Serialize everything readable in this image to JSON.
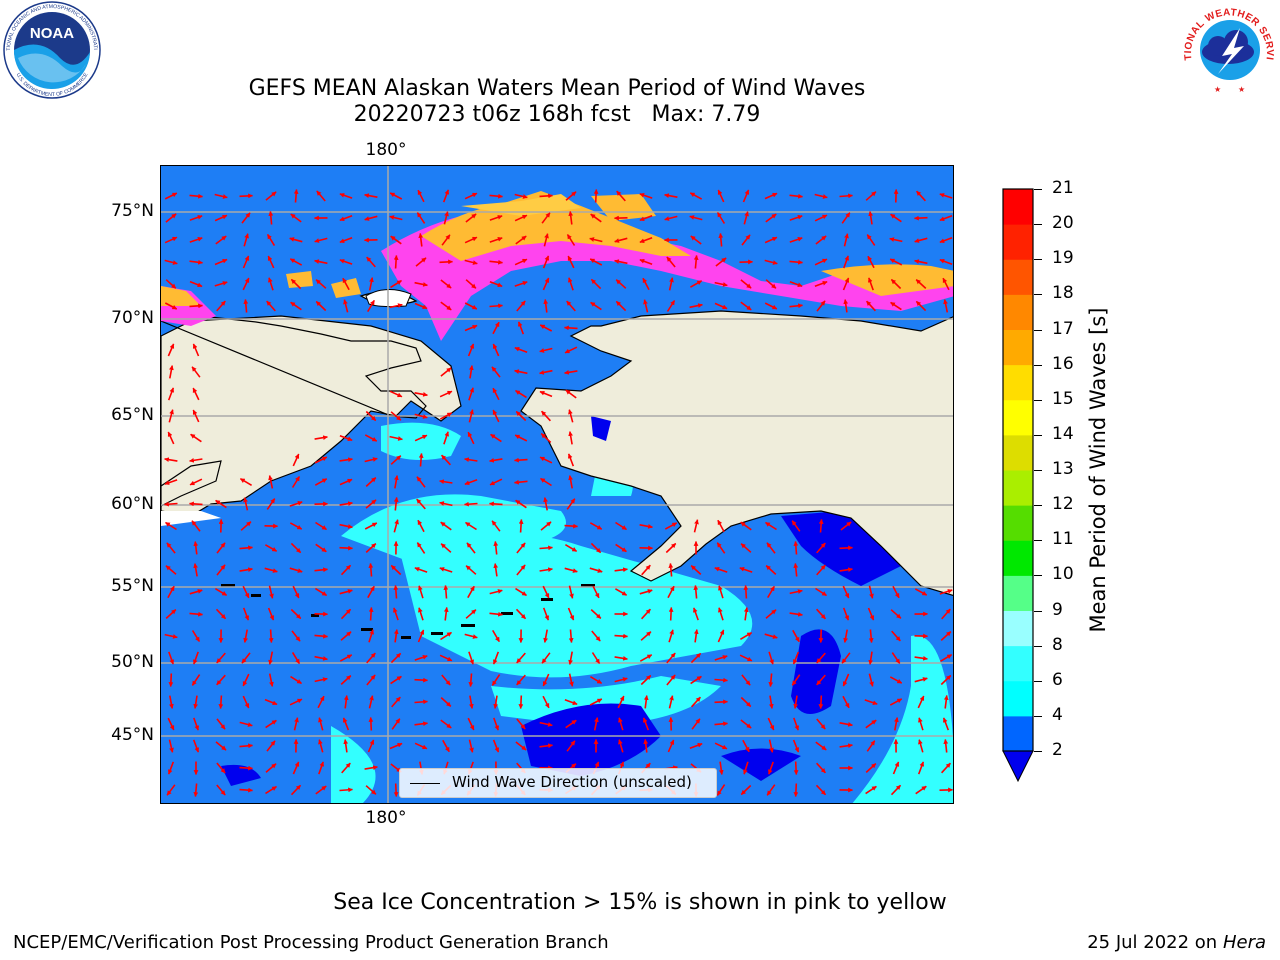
{
  "title": "GEFS MEAN Alaskan Waters Mean Period of Wind Waves",
  "subtitle": "20220723 t06z 168h fcst   Max: 7.79",
  "map": {
    "lon_label_top": "180°",
    "lon_label_bottom": "180°",
    "lat_labels": [
      "75°N",
      "70°N",
      "65°N",
      "60°N",
      "55°N",
      "50°N",
      "45°N"
    ],
    "legend_label": "Wind Wave Direction (unscaled)",
    "land_color": "#efeddb",
    "arrow_color": "#ff0000"
  },
  "colorbar": {
    "label": "Mean Period of Wind Waves [s]",
    "ticks": [
      "2",
      "4",
      "6",
      "8",
      "9",
      "10",
      "11",
      "12",
      "13",
      "14",
      "15",
      "16",
      "17",
      "18",
      "19",
      "20",
      "21"
    ],
    "colors": [
      "#0066ff",
      "#00ffff",
      "#33ffff",
      "#99ffff",
      "#55ff88",
      "#00e800",
      "#55dd00",
      "#aaee00",
      "#dddd00",
      "#ffff00",
      "#ffdd00",
      "#ffaa00",
      "#ff8800",
      "#ff5500",
      "#ff2200",
      "#ff0000"
    ],
    "under_color": "#0000ee"
  },
  "note": "Sea Ice Concentration > 15% is shown in pink to yellow",
  "footer": {
    "left": "NCEP/EMC/Verification Post Processing Product Generation Branch",
    "right_prefix": "25 Jul 2022 on ",
    "right_italic": "Hera"
  },
  "logos": {
    "noaa_text": "NOAA",
    "noaa_ring_top": "NATIONAL OCEANIC AND ATMOSPHERIC ADMINISTRATION",
    "noaa_ring_bottom": "U.S. DEPARTMENT OF COMMERCE",
    "nws_ring": "NATIONAL WEATHER SERVICE"
  }
}
